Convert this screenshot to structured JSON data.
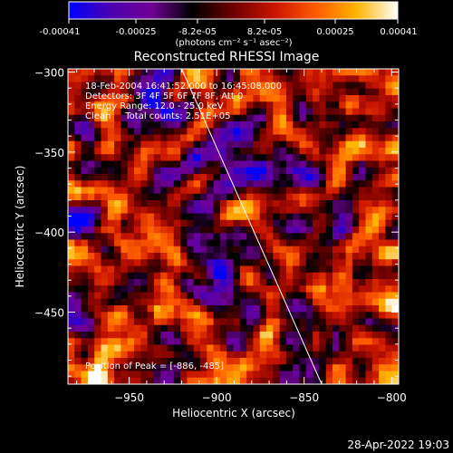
{
  "colorbar": {
    "ticks": [
      "-0.00041",
      "-0.00025",
      "-8.2e-05",
      "8.2e-05",
      "0.00025",
      "0.00041"
    ],
    "unit_label": "(photons cm⁻² s⁻¹ asec⁻²)",
    "stops": [
      "#0000ff",
      "#4b00b0",
      "#700096",
      "#000000",
      "#6e0000",
      "#c81400",
      "#ff5a00",
      "#ffb400",
      "#ffffff"
    ]
  },
  "chart_data": {
    "type": "heatmap",
    "title": "Reconstructed RHESSI Image",
    "xlabel": "Heliocentric X (arcsec)",
    "ylabel": "Heliocentric Y (arcsec)",
    "xlim": [
      -985,
      -796
    ],
    "ylim": [
      -495,
      -298
    ],
    "x_ticks": [
      -950,
      -900,
      -850,
      -800
    ],
    "y_ticks": [
      -300,
      -350,
      -400,
      -450
    ],
    "x_tick_labels": [
      "−950",
      "−900",
      "−850",
      "−800"
    ],
    "y_tick_labels": [
      "−300",
      "−350",
      "−400",
      "−450"
    ],
    "annotations": [
      "18-Feb-2004 16:41:52.000 to 16:45:08.000",
      "Detectors: 3F 4F 5F 6F 7F 8F, Att 0",
      "Energy Range: 12.0 - 25.0 keV",
      "Clean     Total counts: 2.51E+05"
    ],
    "peak_label": "Position of Peak = [-886, -485]",
    "limb_line": [
      [
        -920,
        -298
      ],
      [
        -840,
        -495
      ]
    ]
  },
  "footer": {
    "timestamp": "28-Apr-2022 19:03"
  }
}
